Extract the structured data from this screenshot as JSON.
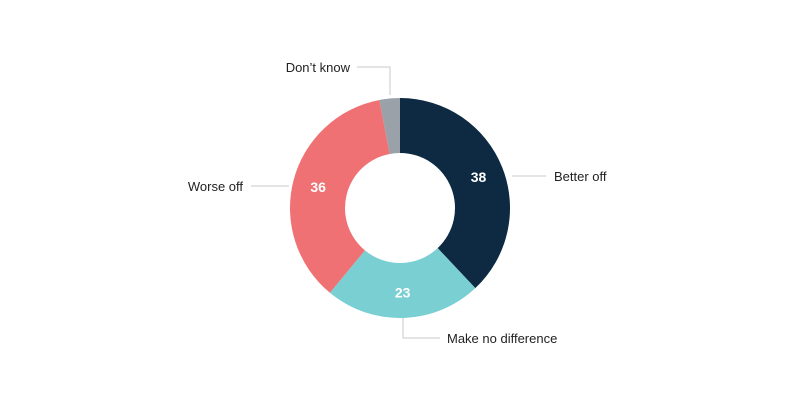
{
  "chart_data": {
    "type": "pie",
    "donut": true,
    "title": "",
    "categories": [
      "Better off",
      "Make no difference",
      "Worse off",
      "Don’t know"
    ],
    "values": [
      38,
      23,
      36,
      3
    ],
    "colors": [
      "#0d2a42",
      "#7acfd2",
      "#f07173",
      "#9aa1a8"
    ],
    "value_label_color": "#ffffff",
    "value_labels_shown": [
      true,
      true,
      true,
      false
    ],
    "legend": "none"
  }
}
